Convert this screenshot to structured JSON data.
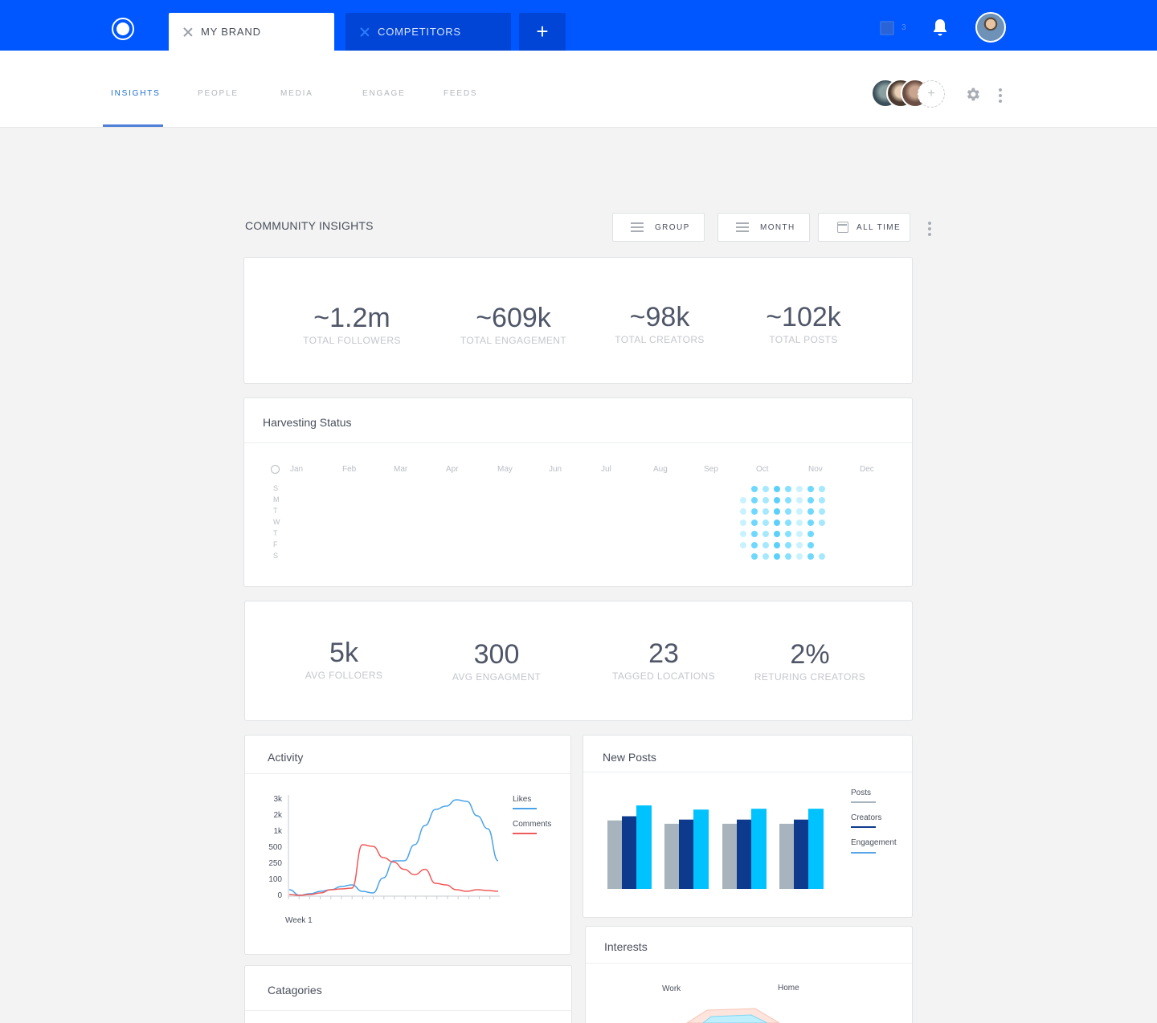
{
  "topbar": {
    "tabs": [
      {
        "label": "MY BRAND"
      },
      {
        "label": "COMPETITORS"
      }
    ],
    "add_tab_label": "+",
    "inbox_count": "3",
    "brand_color": "#0057ff"
  },
  "subnav": {
    "items": [
      {
        "label": "INSIGHTS",
        "active": true
      },
      {
        "label": "PEOPLE"
      },
      {
        "label": "MEDIA"
      },
      {
        "label": "ENGAGE"
      },
      {
        "label": "FEEDS"
      }
    ],
    "team_add_label": "+"
  },
  "community": {
    "title": "COMMUNITY INSIGHTS",
    "filters": [
      {
        "label": "GROUP",
        "icon": "menu-icon"
      },
      {
        "label": "MONTH",
        "icon": "menu-icon"
      },
      {
        "label": "ALL TIME",
        "icon": "calendar-icon"
      }
    ]
  },
  "totals": [
    {
      "value": "~1.2m",
      "label": "TOTAL FOLLOWERS"
    },
    {
      "value": "~609k",
      "label": "TOTAL ENGAGEMENT"
    },
    {
      "value": "~98k",
      "label": "TOTAL CREATORS"
    },
    {
      "value": "~102k",
      "label": "TOTAL POSTS"
    }
  ],
  "harvesting": {
    "title": "Harvesting Status",
    "months": [
      "Jan",
      "Feb",
      "Mar",
      "Apr",
      "May",
      "Jun",
      "Jul",
      "Aug",
      "Sep",
      "Oct",
      "Nov",
      "Dec"
    ],
    "days": [
      "S",
      "M",
      "T",
      "W",
      "T",
      "F",
      "S"
    ]
  },
  "averages": [
    {
      "value": "5k",
      "label": "AVG FOLLOERS"
    },
    {
      "value": "300",
      "label": "AVG ENGAGMENT"
    },
    {
      "value": "23",
      "label": "TAGGED LOCATIONS"
    },
    {
      "value": "2%",
      "label": "RETURING CREATORS"
    }
  ],
  "activity": {
    "title": "Activity",
    "xlabel": "Week 1",
    "legend": [
      {
        "name": "Likes",
        "color": "#4aa3e8"
      },
      {
        "name": "Comments",
        "color": "#f05a5a"
      }
    ],
    "y_ticks": [
      "3k",
      "2k",
      "1k",
      "500",
      "250",
      "100",
      "0"
    ]
  },
  "new_posts": {
    "title": "New Posts",
    "legend": [
      {
        "name": "Posts",
        "color": "#a7b4be"
      },
      {
        "name": "Creators",
        "color": "#0d3a8c"
      },
      {
        "name": "Engagement",
        "color": "#00c2ff"
      }
    ]
  },
  "categories": {
    "title": "Catagories"
  },
  "interests": {
    "title": "Interests",
    "labels": [
      "Work",
      "Home"
    ]
  },
  "chart_data": [
    {
      "type": "line",
      "title": "Activity",
      "xlabel": "Week 1",
      "ylabel": "",
      "y_ticks": [
        "0",
        "100",
        "250",
        "500",
        "1k",
        "2k",
        "3k"
      ],
      "x": [
        1,
        2,
        3,
        4,
        5,
        6,
        7,
        8,
        9,
        10,
        11,
        12,
        13,
        14,
        15,
        16,
        17,
        18,
        19,
        20,
        21
      ],
      "series": [
        {
          "name": "Likes",
          "values": [
            40,
            5,
            15,
            30,
            40,
            60,
            70,
            30,
            20,
            120,
            300,
            300,
            600,
            1400,
            2400,
            2600,
            3000,
            2900,
            2000,
            1200,
            300
          ]
        },
        {
          "name": "Comments",
          "values": [
            10,
            5,
            10,
            20,
            40,
            45,
            50,
            600,
            550,
            350,
            280,
            200,
            150,
            200,
            80,
            70,
            40,
            30,
            40,
            35,
            30
          ]
        }
      ]
    },
    {
      "type": "bar",
      "title": "New Posts",
      "categories": [
        "",
        "",
        "",
        ""
      ],
      "series": [
        {
          "name": "Posts",
          "values": [
            82,
            78,
            78,
            78
          ]
        },
        {
          "name": "Creators",
          "values": [
            87,
            83,
            83,
            83
          ]
        },
        {
          "name": "Engagement",
          "values": [
            100,
            95,
            96,
            96
          ]
        }
      ],
      "ylim": [
        0,
        100
      ]
    }
  ]
}
